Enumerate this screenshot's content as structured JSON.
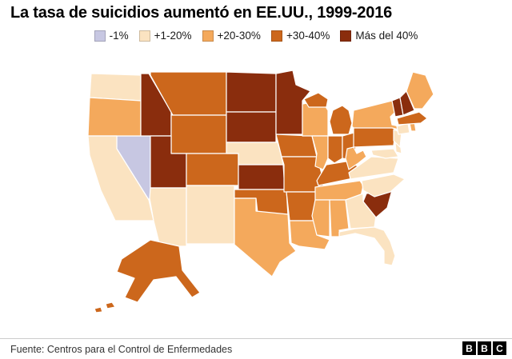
{
  "title": "La tasa de suicidios aumentó en EE.UU., 1999-2016",
  "legend": [
    {
      "label": "-1%",
      "color": "#c7c7e2"
    },
    {
      "label": "+1-20%",
      "color": "#fbe3c1"
    },
    {
      "label": "+20-30%",
      "color": "#f4a95c"
    },
    {
      "label": "+30-40%",
      "color": "#cc671c"
    },
    {
      "label": "Más del 40%",
      "color": "#8a2d0d"
    }
  ],
  "footer": {
    "source": "Fuente: Centros para el Control de Enfermedades",
    "logo_letters": [
      "B",
      "B",
      "C"
    ]
  },
  "chart_data": {
    "type": "choropleth",
    "title": "La tasa de suicidios aumentó en EE.UU., 1999-2016",
    "region": "United States",
    "categories": [
      "-1%",
      "+1-20%",
      "+20-30%",
      "+30-40%",
      "Más del 40%"
    ],
    "legend_position": "top-center",
    "states": [
      {
        "id": "NV",
        "name": "Nevada",
        "value": "-1%"
      },
      {
        "id": "WA",
        "name": "Washington",
        "value": "+1-20%"
      },
      {
        "id": "OR",
        "name": "Oregon",
        "value": "+20-30%"
      },
      {
        "id": "CA",
        "name": "California",
        "value": "+1-20%"
      },
      {
        "id": "ID",
        "name": "Idaho",
        "value": "Más del 40%"
      },
      {
        "id": "MT",
        "name": "Montana",
        "value": "+30-40%"
      },
      {
        "id": "WY",
        "name": "Wyoming",
        "value": "+30-40%"
      },
      {
        "id": "UT",
        "name": "Utah",
        "value": "Más del 40%"
      },
      {
        "id": "AZ",
        "name": "Arizona",
        "value": "+1-20%"
      },
      {
        "id": "CO",
        "name": "Colorado",
        "value": "+30-40%"
      },
      {
        "id": "NM",
        "name": "New Mexico",
        "value": "+1-20%"
      },
      {
        "id": "ND",
        "name": "North Dakota",
        "value": "Más del 40%"
      },
      {
        "id": "SD",
        "name": "South Dakota",
        "value": "Más del 40%"
      },
      {
        "id": "NE",
        "name": "Nebraska",
        "value": "+1-20%"
      },
      {
        "id": "KS",
        "name": "Kansas",
        "value": "Más del 40%"
      },
      {
        "id": "OK",
        "name": "Oklahoma",
        "value": "+30-40%"
      },
      {
        "id": "TX",
        "name": "Texas",
        "value": "+20-30%"
      },
      {
        "id": "MN",
        "name": "Minnesota",
        "value": "Más del 40%"
      },
      {
        "id": "IA",
        "name": "Iowa",
        "value": "+30-40%"
      },
      {
        "id": "MO",
        "name": "Missouri",
        "value": "+30-40%"
      },
      {
        "id": "AR",
        "name": "Arkansas",
        "value": "+30-40%"
      },
      {
        "id": "LA",
        "name": "Louisiana",
        "value": "+20-30%"
      },
      {
        "id": "WI",
        "name": "Wisconsin",
        "value": "+20-30%"
      },
      {
        "id": "IL",
        "name": "Illinois",
        "value": "+20-30%"
      },
      {
        "id": "MI",
        "name": "Michigan",
        "value": "+30-40%"
      },
      {
        "id": "IN",
        "name": "Indiana",
        "value": "+30-40%"
      },
      {
        "id": "OH",
        "name": "Ohio",
        "value": "+30-40%"
      },
      {
        "id": "KY",
        "name": "Kentucky",
        "value": "+30-40%"
      },
      {
        "id": "TN",
        "name": "Tennessee",
        "value": "+20-30%"
      },
      {
        "id": "MS",
        "name": "Mississippi",
        "value": "+20-30%"
      },
      {
        "id": "AL",
        "name": "Alabama",
        "value": "+20-30%"
      },
      {
        "id": "GA",
        "name": "Georgia",
        "value": "+1-20%"
      },
      {
        "id": "FL",
        "name": "Florida",
        "value": "+1-20%"
      },
      {
        "id": "SC",
        "name": "South Carolina",
        "value": "Más del 40%"
      },
      {
        "id": "NC",
        "name": "North Carolina",
        "value": "+1-20%"
      },
      {
        "id": "VA",
        "name": "Virginia",
        "value": "+1-20%"
      },
      {
        "id": "WV",
        "name": "West Virginia",
        "value": "+20-30%"
      },
      {
        "id": "PA",
        "name": "Pennsylvania",
        "value": "+30-40%"
      },
      {
        "id": "NY",
        "name": "New York",
        "value": "+20-30%"
      },
      {
        "id": "MD",
        "name": "Maryland",
        "value": "+1-20%"
      },
      {
        "id": "DE",
        "name": "Delaware",
        "value": "+1-20%"
      },
      {
        "id": "NJ",
        "name": "New Jersey",
        "value": "+1-20%"
      },
      {
        "id": "CT",
        "name": "Connecticut",
        "value": "+1-20%"
      },
      {
        "id": "RI",
        "name": "Rhode Island",
        "value": "+20-30%"
      },
      {
        "id": "MA",
        "name": "Massachusetts",
        "value": "+30-40%"
      },
      {
        "id": "VT",
        "name": "Vermont",
        "value": "Más del 40%"
      },
      {
        "id": "NH",
        "name": "New Hampshire",
        "value": "Más del 40%"
      },
      {
        "id": "ME",
        "name": "Maine",
        "value": "+20-30%"
      },
      {
        "id": "AK",
        "name": "Alaska",
        "value": "+30-40%"
      }
    ]
  }
}
